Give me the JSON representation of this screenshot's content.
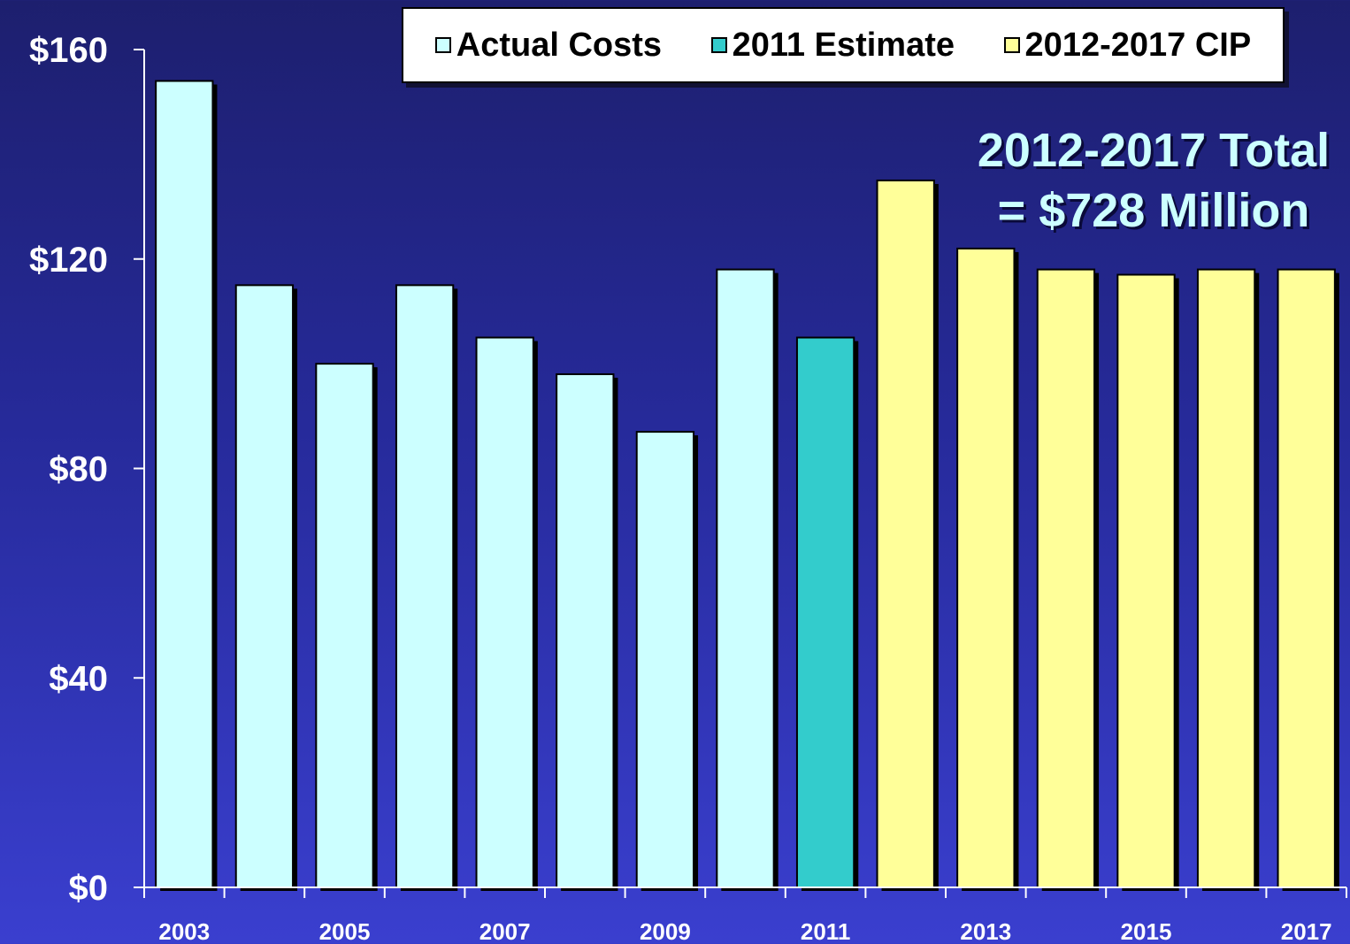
{
  "chart_data": {
    "type": "bar",
    "title": "",
    "xlabel": "",
    "ylabel": "",
    "ylim": [
      0,
      160
    ],
    "yticks": [
      0,
      40,
      80,
      120,
      160
    ],
    "ytick_labels": [
      "$0",
      "$40",
      "$80",
      "$120",
      "$160"
    ],
    "categories": [
      "2003",
      "2004",
      "2005",
      "2006",
      "2007",
      "2008",
      "2009",
      "2010",
      "2011",
      "2012",
      "2013",
      "2014",
      "2015",
      "2016",
      "2017"
    ],
    "xtick_labels": [
      "2003",
      "",
      "2005",
      "",
      "2007",
      "",
      "2009",
      "",
      "2011",
      "",
      "2013",
      "",
      "2015",
      "",
      "2017"
    ],
    "values": [
      154,
      115,
      100,
      115,
      105,
      98,
      87,
      118,
      105,
      135,
      122,
      118,
      117,
      118,
      118
    ],
    "bar_series": [
      "Actual Costs",
      "Actual Costs",
      "Actual Costs",
      "Actual Costs",
      "Actual Costs",
      "Actual Costs",
      "Actual Costs",
      "Actual Costs",
      "2011 Estimate",
      "2012-2017 CIP",
      "2012-2017 CIP",
      "2012-2017 CIP",
      "2012-2017 CIP",
      "2012-2017 CIP",
      "2012-2017 CIP"
    ],
    "series": [
      {
        "name": "Actual Costs",
        "color": "#ccffff"
      },
      {
        "name": "2011 Estimate",
        "color": "#33cccc"
      },
      {
        "name": "2012-2017 CIP",
        "color": "#ffff99"
      }
    ],
    "legend": {
      "placement": "top-right"
    },
    "grid": false,
    "annotation": {
      "line1": "2012-2017 Total",
      "line2": "= $728 Million",
      "color": "#ccffff"
    }
  }
}
